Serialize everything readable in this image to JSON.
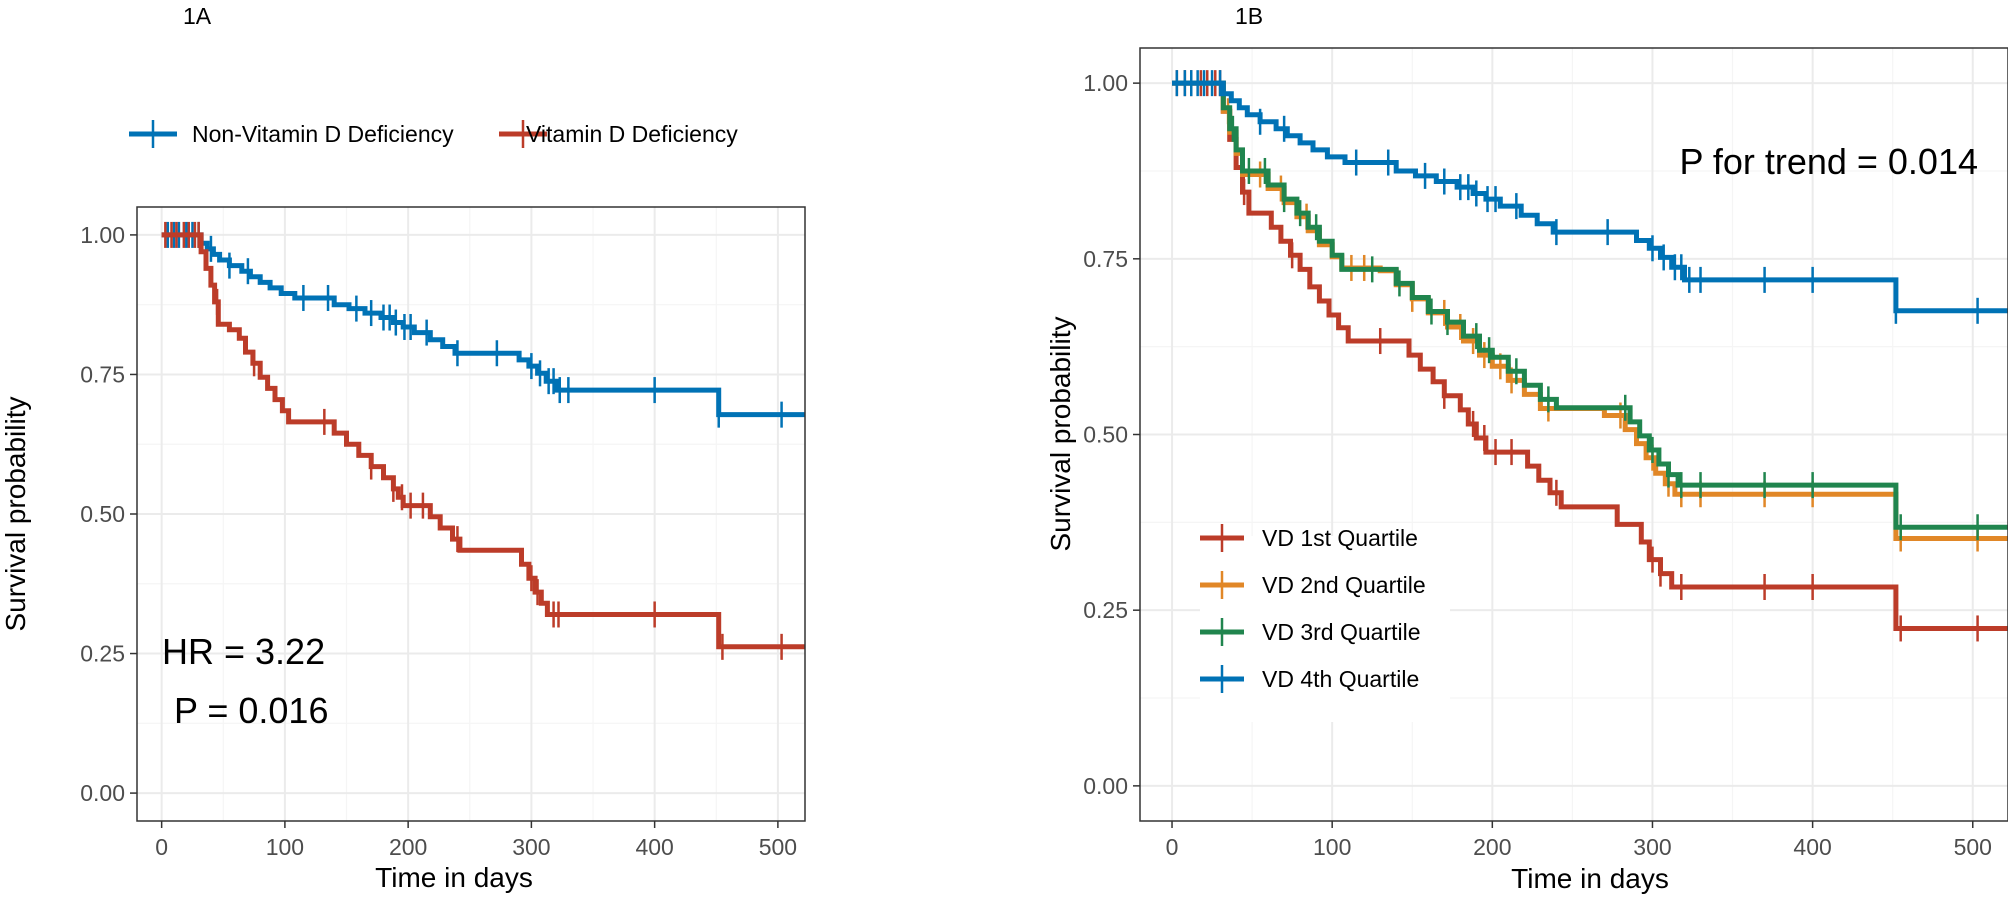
{
  "chart_data": [
    {
      "panel": "1A",
      "type": "line",
      "subtype": "kaplan-meier",
      "xlabel": "Time in days",
      "ylabel": "Survival probability",
      "xlim": [
        -20,
        522
      ],
      "ylim": [
        -0.05,
        1.05
      ],
      "xticks": [
        0,
        100,
        200,
        300,
        400,
        500
      ],
      "yticks": [
        0.0,
        0.25,
        0.5,
        0.75,
        1.0
      ],
      "ytick_labels": [
        "0.00",
        "0.25",
        "0.50",
        "0.75",
        "1.00"
      ],
      "legend_position": "top",
      "annotations": [
        "HR = 3.22",
        "P = 0.016"
      ],
      "series": [
        {
          "name": "Non-Vitamin D Deficiency",
          "color": "#0072B5",
          "steps": [
            [
              0,
              1.0
            ],
            [
              32,
              0.985
            ],
            [
              37,
              0.975
            ],
            [
              42,
              0.965
            ],
            [
              47,
              0.955
            ],
            [
              55,
              0.945
            ],
            [
              65,
              0.935
            ],
            [
              72,
              0.925
            ],
            [
              80,
              0.915
            ],
            [
              88,
              0.905
            ],
            [
              97,
              0.895
            ],
            [
              108,
              0.887
            ],
            [
              130,
              0.887
            ],
            [
              140,
              0.875
            ],
            [
              152,
              0.868
            ],
            [
              165,
              0.86
            ],
            [
              178,
              0.852
            ],
            [
              188,
              0.843
            ],
            [
              196,
              0.835
            ],
            [
              205,
              0.825
            ],
            [
              218,
              0.812
            ],
            [
              228,
              0.8
            ],
            [
              238,
              0.788
            ],
            [
              280,
              0.788
            ],
            [
              290,
              0.776
            ],
            [
              298,
              0.765
            ],
            [
              305,
              0.752
            ],
            [
              312,
              0.738
            ],
            [
              320,
              0.722
            ],
            [
              450,
              0.722
            ],
            [
              452,
              0.678
            ],
            [
              522,
              0.678
            ]
          ],
          "censor_times": [
            5,
            10,
            14,
            20,
            25,
            30,
            40,
            55,
            70,
            115,
            135,
            158,
            170,
            180,
            185,
            190,
            197,
            202,
            215,
            240,
            272,
            300,
            307,
            314,
            318,
            323,
            330,
            400,
            452,
            503
          ]
        },
        {
          "name": "Vitamin D Deficiency",
          "color": "#BC3C29",
          "steps": [
            [
              0,
              1.0
            ],
            [
              32,
              0.97
            ],
            [
              36,
              0.94
            ],
            [
              40,
              0.91
            ],
            [
              43,
              0.88
            ],
            [
              46,
              0.84
            ],
            [
              55,
              0.83
            ],
            [
              63,
              0.815
            ],
            [
              68,
              0.79
            ],
            [
              74,
              0.77
            ],
            [
              80,
              0.745
            ],
            [
              86,
              0.725
            ],
            [
              92,
              0.705
            ],
            [
              98,
              0.685
            ],
            [
              103,
              0.665
            ],
            [
              132,
              0.665
            ],
            [
              140,
              0.645
            ],
            [
              150,
              0.625
            ],
            [
              160,
              0.605
            ],
            [
              170,
              0.585
            ],
            [
              180,
              0.565
            ],
            [
              188,
              0.545
            ],
            [
              192,
              0.53
            ],
            [
              196,
              0.515
            ],
            [
              208,
              0.515
            ],
            [
              218,
              0.495
            ],
            [
              226,
              0.475
            ],
            [
              236,
              0.455
            ],
            [
              242,
              0.435
            ],
            [
              285,
              0.435
            ],
            [
              292,
              0.41
            ],
            [
              298,
              0.385
            ],
            [
              303,
              0.36
            ],
            [
              308,
              0.34
            ],
            [
              313,
              0.32
            ],
            [
              450,
              0.32
            ],
            [
              452,
              0.262
            ],
            [
              522,
              0.262
            ]
          ],
          "censor_times": [
            3,
            8,
            12,
            18,
            22,
            27,
            30,
            45,
            75,
            132,
            170,
            188,
            195,
            202,
            212,
            240,
            300,
            305,
            318,
            322,
            400,
            455,
            503
          ]
        }
      ]
    },
    {
      "panel": "1B",
      "type": "line",
      "subtype": "kaplan-meier",
      "xlabel": "Time in days",
      "ylabel": "Survival probability",
      "xlim": [
        -20,
        522
      ],
      "ylim": [
        -0.05,
        1.05
      ],
      "xticks": [
        0,
        100,
        200,
        300,
        400,
        500
      ],
      "yticks": [
        0.0,
        0.25,
        0.5,
        0.75,
        1.0
      ],
      "ytick_labels": [
        "0.00",
        "0.25",
        "0.50",
        "0.75",
        "1.00"
      ],
      "legend_position": "bottom-left",
      "annotations": [
        "P for trend = 0.014"
      ],
      "series": [
        {
          "name": "VD 1st Quartile",
          "color": "#BC3C29",
          "steps": [
            [
              0,
              1.0
            ],
            [
              32,
              0.96
            ],
            [
              36,
              0.92
            ],
            [
              40,
              0.88
            ],
            [
              44,
              0.845
            ],
            [
              48,
              0.815
            ],
            [
              62,
              0.795
            ],
            [
              68,
              0.775
            ],
            [
              74,
              0.755
            ],
            [
              80,
              0.735
            ],
            [
              86,
              0.71
            ],
            [
              92,
              0.69
            ],
            [
              98,
              0.67
            ],
            [
              104,
              0.652
            ],
            [
              110,
              0.633
            ],
            [
              140,
              0.633
            ],
            [
              148,
              0.613
            ],
            [
              155,
              0.593
            ],
            [
              163,
              0.575
            ],
            [
              170,
              0.555
            ],
            [
              180,
              0.535
            ],
            [
              185,
              0.515
            ],
            [
              190,
              0.495
            ],
            [
              196,
              0.475
            ],
            [
              222,
              0.455
            ],
            [
              229,
              0.435
            ],
            [
              236,
              0.417
            ],
            [
              243,
              0.397
            ],
            [
              278,
              0.372
            ],
            [
              293,
              0.347
            ],
            [
              298,
              0.322
            ],
            [
              305,
              0.302
            ],
            [
              312,
              0.283
            ],
            [
              450,
              0.283
            ],
            [
              452,
              0.224
            ],
            [
              522,
              0.224
            ]
          ],
          "censor_times": [
            3,
            8,
            12,
            18,
            22,
            27,
            30,
            45,
            75,
            130,
            170,
            188,
            195,
            202,
            212,
            240,
            300,
            305,
            318,
            370,
            400,
            455,
            503
          ]
        },
        {
          "name": "VD 2nd Quartile",
          "color": "#E18727",
          "steps": [
            [
              0,
              1.0
            ],
            [
              32,
              0.96
            ],
            [
              36,
              0.93
            ],
            [
              40,
              0.9
            ],
            [
              44,
              0.87
            ],
            [
              60,
              0.85
            ],
            [
              70,
              0.83
            ],
            [
              78,
              0.81
            ],
            [
              85,
              0.79
            ],
            [
              92,
              0.77
            ],
            [
              100,
              0.753
            ],
            [
              106,
              0.737
            ],
            [
              130,
              0.733
            ],
            [
              140,
              0.713
            ],
            [
              150,
              0.693
            ],
            [
              160,
              0.673
            ],
            [
              172,
              0.653
            ],
            [
              182,
              0.633
            ],
            [
              192,
              0.613
            ],
            [
              200,
              0.597
            ],
            [
              210,
              0.577
            ],
            [
              220,
              0.557
            ],
            [
              230,
              0.537
            ],
            [
              270,
              0.527
            ],
            [
              283,
              0.507
            ],
            [
              290,
              0.487
            ],
            [
              296,
              0.467
            ],
            [
              302,
              0.445
            ],
            [
              308,
              0.43
            ],
            [
              314,
              0.415
            ],
            [
              450,
              0.415
            ],
            [
              452,
              0.352
            ],
            [
              522,
              0.352
            ]
          ],
          "censor_times": [
            35,
            55,
            68,
            84,
            112,
            120,
            150,
            170,
            180,
            188,
            195,
            205,
            212,
            235,
            280,
            300,
            310,
            318,
            330,
            370,
            400,
            455,
            503
          ]
        },
        {
          "name": "VD 3rd Quartile",
          "color": "#20854E",
          "steps": [
            [
              0,
              1.0
            ],
            [
              32,
              0.965
            ],
            [
              36,
              0.935
            ],
            [
              40,
              0.905
            ],
            [
              44,
              0.875
            ],
            [
              60,
              0.855
            ],
            [
              70,
              0.835
            ],
            [
              78,
              0.815
            ],
            [
              85,
              0.795
            ],
            [
              92,
              0.775
            ],
            [
              100,
              0.755
            ],
            [
              106,
              0.735
            ],
            [
              130,
              0.735
            ],
            [
              140,
              0.715
            ],
            [
              150,
              0.695
            ],
            [
              160,
              0.675
            ],
            [
              172,
              0.66
            ],
            [
              182,
              0.64
            ],
            [
              192,
              0.62
            ],
            [
              200,
              0.61
            ],
            [
              210,
              0.59
            ],
            [
              220,
              0.57
            ],
            [
              230,
              0.55
            ],
            [
              240,
              0.538
            ],
            [
              280,
              0.538
            ],
            [
              286,
              0.518
            ],
            [
              292,
              0.498
            ],
            [
              298,
              0.478
            ],
            [
              304,
              0.458
            ],
            [
              310,
              0.443
            ],
            [
              316,
              0.428
            ],
            [
              450,
              0.428
            ],
            [
              452,
              0.368
            ],
            [
              522,
              0.368
            ]
          ],
          "censor_times": [
            38,
            48,
            58,
            70,
            80,
            90,
            125,
            142,
            162,
            172,
            190,
            198,
            215,
            235,
            283,
            300,
            310,
            318,
            330,
            370,
            400,
            455,
            503
          ]
        },
        {
          "name": "VD 4th Quartile",
          "color": "#0072B5",
          "steps": [
            [
              0,
              1.0
            ],
            [
              32,
              0.985
            ],
            [
              37,
              0.975
            ],
            [
              42,
              0.965
            ],
            [
              47,
              0.955
            ],
            [
              55,
              0.945
            ],
            [
              65,
              0.935
            ],
            [
              72,
              0.925
            ],
            [
              80,
              0.915
            ],
            [
              88,
              0.905
            ],
            [
              97,
              0.895
            ],
            [
              108,
              0.887
            ],
            [
              130,
              0.887
            ],
            [
              140,
              0.875
            ],
            [
              152,
              0.868
            ],
            [
              165,
              0.86
            ],
            [
              178,
              0.852
            ],
            [
              188,
              0.843
            ],
            [
              196,
              0.835
            ],
            [
              205,
              0.825
            ],
            [
              218,
              0.812
            ],
            [
              228,
              0.8
            ],
            [
              238,
              0.788
            ],
            [
              280,
              0.788
            ],
            [
              290,
              0.776
            ],
            [
              298,
              0.765
            ],
            [
              305,
              0.752
            ],
            [
              312,
              0.738
            ],
            [
              320,
              0.72
            ],
            [
              450,
              0.72
            ],
            [
              452,
              0.676
            ],
            [
              522,
              0.676
            ]
          ],
          "censor_times": [
            3,
            8,
            12,
            16,
            20,
            25,
            30,
            55,
            70,
            115,
            135,
            158,
            170,
            180,
            185,
            190,
            197,
            202,
            215,
            240,
            272,
            300,
            307,
            314,
            318,
            323,
            330,
            370,
            400,
            452,
            503
          ]
        }
      ]
    }
  ]
}
